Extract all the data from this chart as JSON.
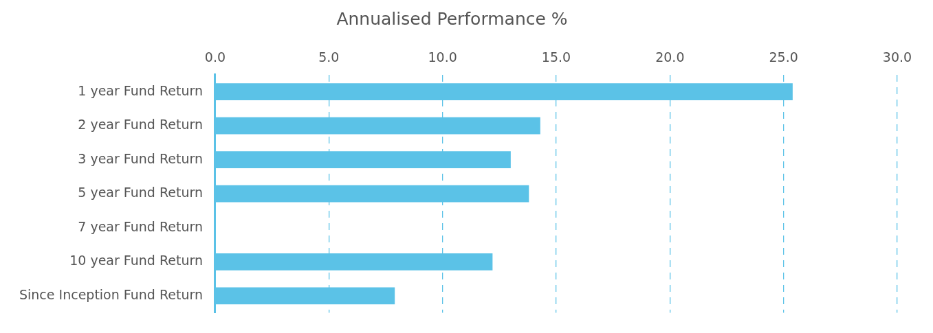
{
  "chart_data": {
    "type": "bar",
    "orientation": "horizontal",
    "title": "Annualised Performance %",
    "categories": [
      "1 year Fund Return",
      "2 year Fund Return",
      "3 year Fund Return",
      "5 year Fund Return",
      "7 year Fund Return",
      "10 year Fund Return",
      "Since Inception Fund Return"
    ],
    "values": [
      25.4,
      14.3,
      13.0,
      13.8,
      null,
      12.2,
      7.9
    ],
    "color": "#5bc2e7",
    "xlim": [
      0,
      30
    ],
    "xticks": [
      {
        "value": 0,
        "label": "0.0"
      },
      {
        "value": 5,
        "label": "5.0"
      },
      {
        "value": 10,
        "label": "10.0"
      },
      {
        "value": 15,
        "label": "15.0"
      },
      {
        "value": 20,
        "label": "20.0"
      },
      {
        "value": 25,
        "label": "25.0"
      },
      {
        "value": 30,
        "label": "30.0"
      }
    ],
    "grid": "x",
    "legend": false
  }
}
